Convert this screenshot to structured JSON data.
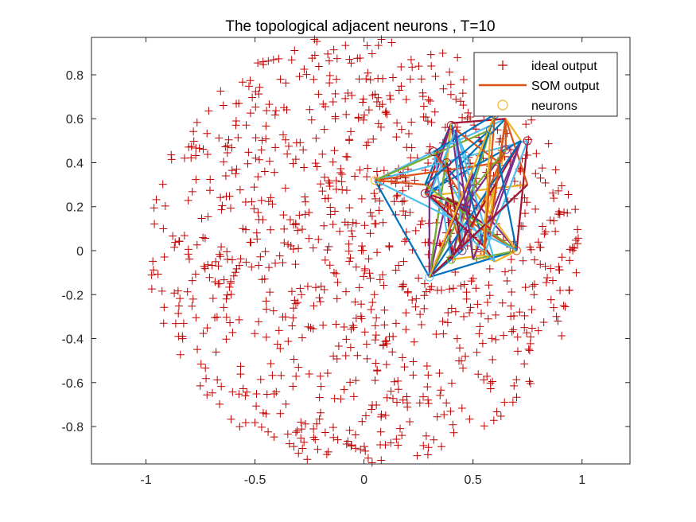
{
  "chart_data": {
    "type": "scatter",
    "title": "The topological adjacent neurons , T=10",
    "xlabel": "",
    "ylabel": "",
    "xlim": [
      -1.25,
      1.22
    ],
    "ylim": [
      -0.97,
      0.97
    ],
    "xticks": [
      -1,
      -0.5,
      0,
      0.5,
      1
    ],
    "yticks": [
      -0.8,
      -0.6,
      -0.4,
      -0.2,
      0,
      0.2,
      0.4,
      0.6,
      0.8
    ],
    "xtick_labels": [
      "-1",
      "-0.5",
      "0",
      "0.5",
      "1"
    ],
    "ytick_labels": [
      "-0.8",
      "-0.6",
      "-0.4",
      "-0.2",
      "0",
      "0.2",
      "0.4",
      "0.6",
      "0.8"
    ],
    "grid": false,
    "legend_position": "top-right",
    "legend": [
      {
        "label": "ideal output",
        "marker": "plus",
        "color": "#c00000"
      },
      {
        "label": "SOM output",
        "marker": "line",
        "color": "#d95319"
      },
      {
        "label": "neurons",
        "marker": "circle",
        "color": "#edb120"
      }
    ],
    "series": [
      {
        "name": "ideal output",
        "marker": "plus",
        "color": "#c00000",
        "points_note": "~1000 points uniformly filling the unit disk",
        "x": [
          -0.95,
          -0.92,
          -0.9,
          -0.88,
          -0.85,
          -0.82,
          -0.8,
          -0.78,
          -0.75,
          -0.72,
          -0.7,
          -0.68,
          -0.65,
          -0.62,
          -0.6,
          -0.58,
          -0.55,
          -0.52,
          -0.5,
          -0.48,
          -0.45,
          -0.42,
          -0.4,
          -0.38,
          -0.35,
          -0.32,
          -0.3,
          -0.28,
          -0.25,
          -0.22,
          -0.2,
          -0.18,
          -0.15,
          -0.12,
          -0.1,
          -0.08,
          -0.05,
          -0.02,
          0.0,
          0.02,
          0.05,
          0.08,
          0.1,
          0.12,
          0.15,
          0.18,
          0.2,
          0.22,
          0.25,
          0.28,
          0.3,
          0.32,
          0.35,
          0.38,
          0.4,
          0.42,
          0.45,
          0.48,
          0.5,
          0.52,
          0.55,
          0.58,
          0.6,
          0.62,
          0.65,
          0.68,
          0.7,
          0.72,
          0.75,
          0.78,
          0.8,
          0.82,
          0.85,
          0.88,
          0.9,
          0.92,
          0.95
        ],
        "y": [
          0.05,
          -0.1,
          0.3,
          -0.3,
          0.2,
          -0.5,
          0.45,
          -0.2,
          0.1,
          -0.6,
          0.6,
          -0.4,
          0.35,
          -0.15,
          0.7,
          -0.7,
          0.5,
          -0.85,
          0.8,
          0.0,
          -0.3,
          0.25,
          -0.75,
          0.65,
          -0.5,
          0.85,
          0.4,
          -0.9,
          0.15,
          0.9,
          -0.65,
          0.55,
          -0.4,
          0.75,
          -0.8,
          0.3,
          -0.55,
          0.95,
          -0.95,
          0.6,
          -0.2,
          0.45,
          -0.7,
          0.85,
          -0.35,
          0.1,
          -0.85,
          0.7,
          0.2,
          -0.6,
          -0.9,
          0.35,
          -0.45,
          0.8,
          -0.25,
          0.5,
          -0.75,
          0.65,
          -0.1,
          0.0,
          -0.5,
          0.75,
          -0.3,
          0.55,
          -0.65,
          0.4,
          -0.05,
          0.25,
          -0.45,
          0.6,
          0.1,
          -0.35,
          0.2,
          -0.2,
          0.3,
          -0.1,
          0.05
        ]
      },
      {
        "name": "SOM output",
        "marker": "line",
        "color": "#d95319",
        "x": [
          0.3,
          0.42,
          0.55,
          0.72,
          0.35,
          0.5,
          0.65,
          0.28,
          0.45,
          0.6,
          0.75,
          0.4,
          0.05,
          0.38,
          0.58,
          0.7,
          0.32,
          0.48,
          0.62,
          0.5,
          0.3
        ],
        "y": [
          -0.12,
          0.55,
          0.02,
          0.5,
          0.45,
          -0.04,
          0.6,
          0.3,
          0.18,
          -0.05,
          0.3,
          0.58,
          0.32,
          0.24,
          0.1,
          0.0,
          0.45,
          0.2,
          0.4,
          0.35,
          0.25
        ]
      }
    ],
    "neurons": {
      "name": "neurons",
      "marker": "circle",
      "color": "#edb120",
      "x": [
        0.3,
        0.4,
        0.55,
        0.7,
        0.05,
        0.28,
        0.5,
        0.75,
        0.4,
        0.6,
        0.65,
        0.38,
        0.45,
        0.32,
        0.58
      ],
      "y": [
        -0.12,
        -0.04,
        -0.02,
        0.0,
        0.32,
        0.26,
        0.28,
        0.5,
        0.57,
        0.62,
        0.46,
        0.4,
        0.0,
        0.45,
        0.55
      ]
    }
  }
}
